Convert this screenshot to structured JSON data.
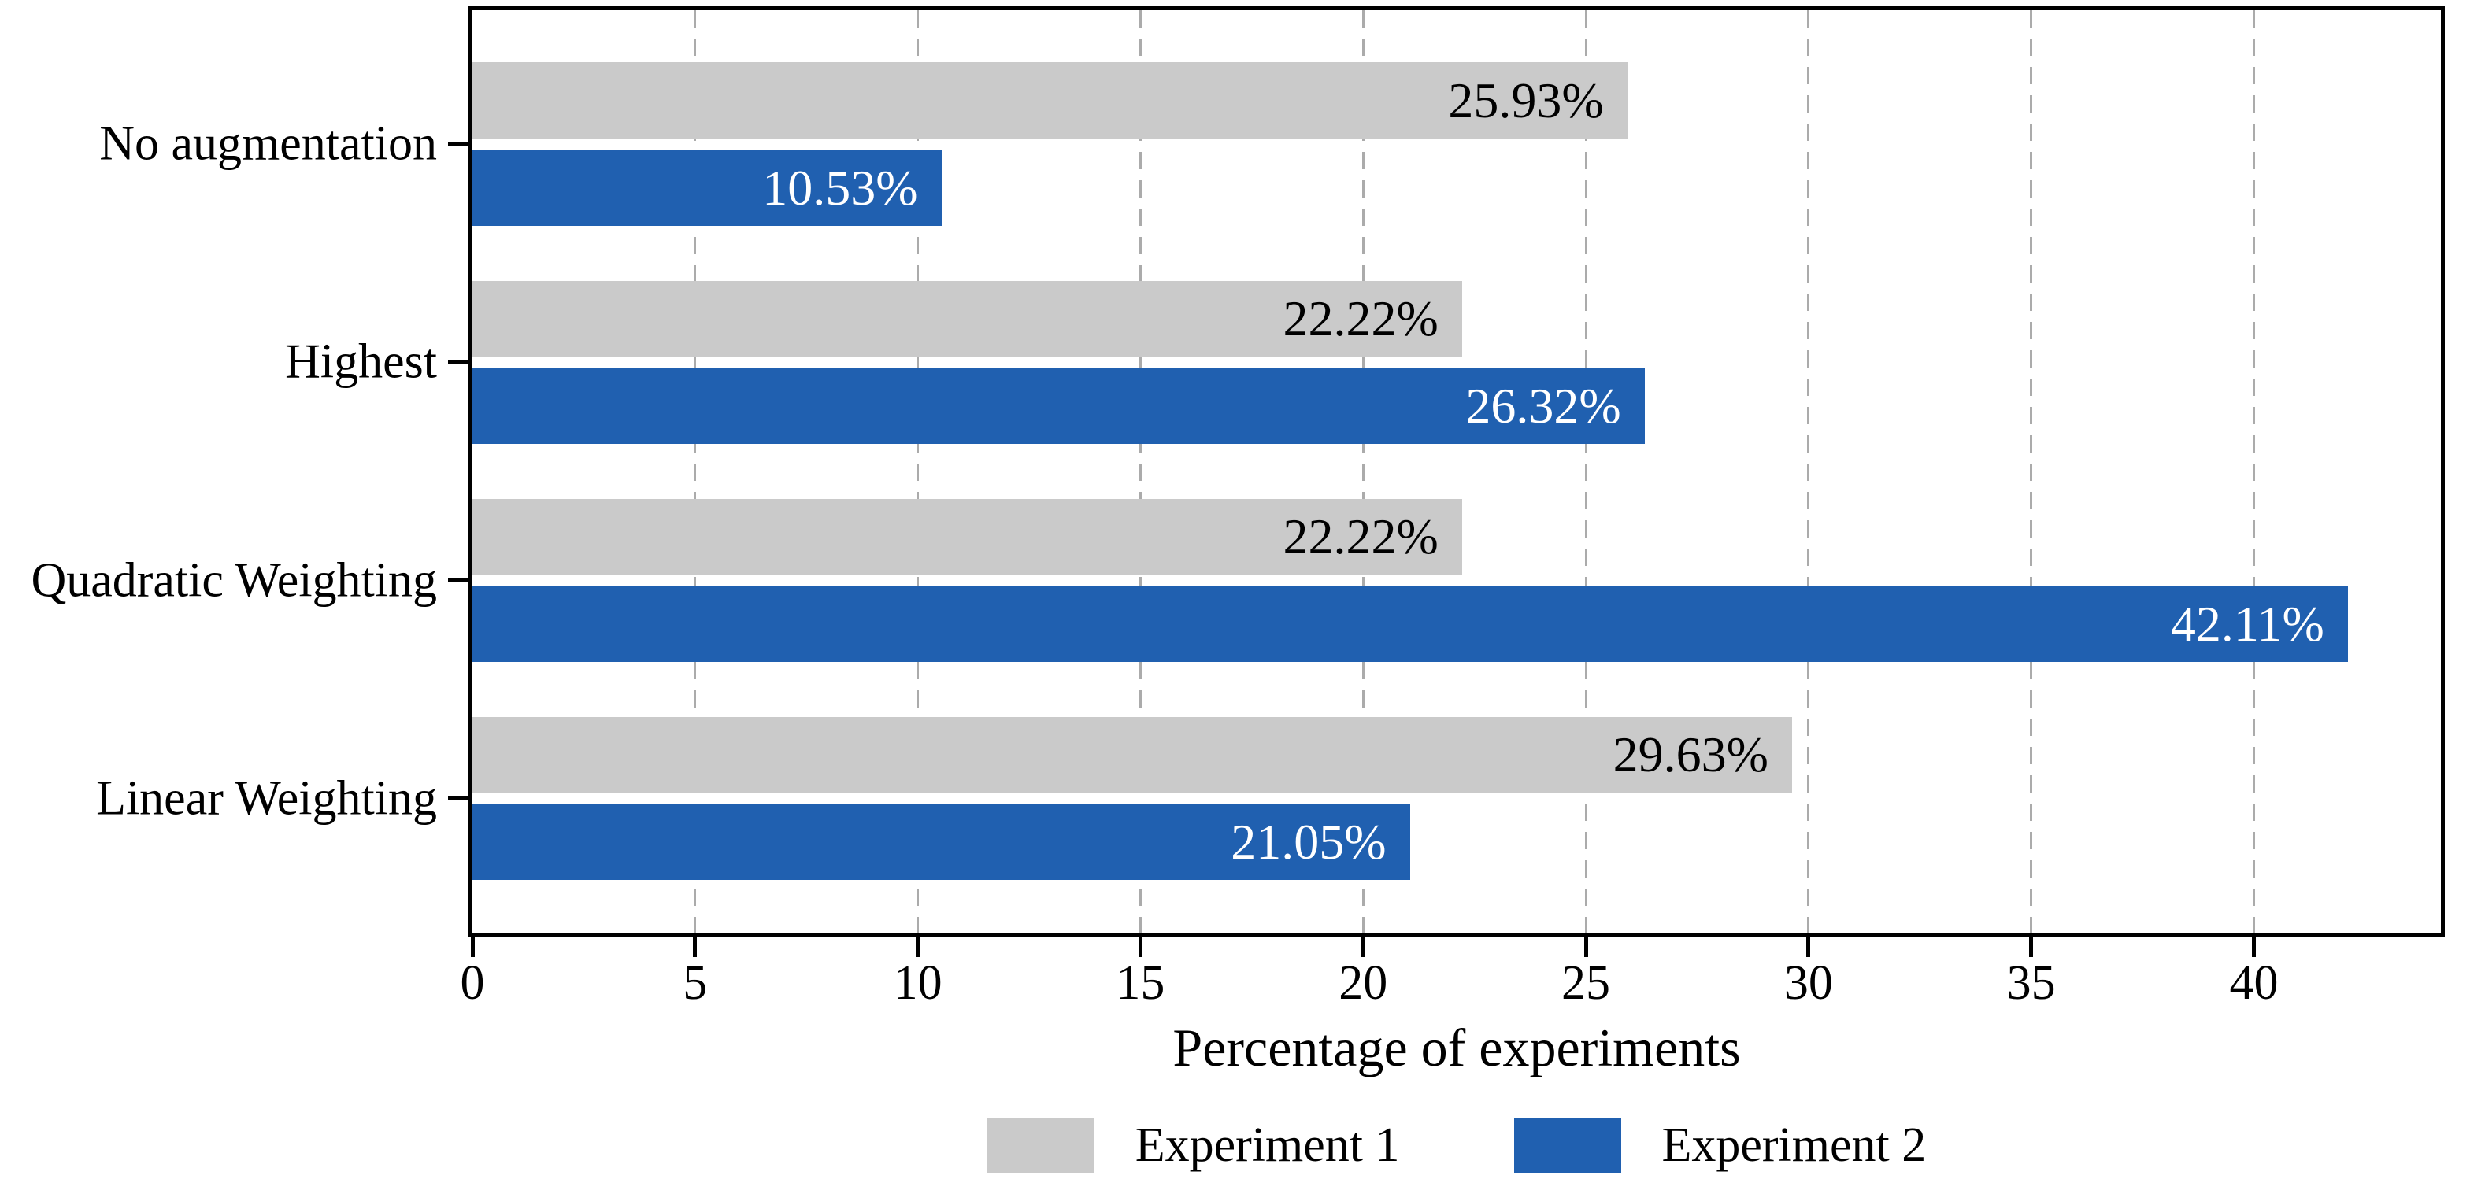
{
  "chart_data": {
    "type": "bar",
    "orientation": "horizontal",
    "categories": [
      "No augmentation",
      "Highest",
      "Quadratic Weighting",
      "Linear Weighting"
    ],
    "series": [
      {
        "name": "Experiment 1",
        "color": "#cacaca",
        "label_color": "#000000",
        "values": [
          25.93,
          22.22,
          22.22,
          29.63
        ],
        "value_labels": [
          "25.93%",
          "22.22%",
          "22.22%",
          "29.63%"
        ]
      },
      {
        "name": "Experiment 2",
        "color": "#2060b0",
        "label_color": "#ffffff",
        "values": [
          10.53,
          26.32,
          42.11,
          21.05
        ],
        "value_labels": [
          "10.53%",
          "26.32%",
          "42.11%",
          "21.05%"
        ]
      }
    ],
    "xlabel": "Percentage of experiments",
    "xlim": [
      0,
      44.2
    ],
    "xticks": [
      0,
      5,
      10,
      15,
      20,
      25,
      30,
      35,
      40
    ],
    "xtick_labels": [
      "0",
      "5",
      "10",
      "15",
      "20",
      "25",
      "30",
      "35",
      "40"
    ],
    "grid": {
      "axis": "x",
      "style": "dashed",
      "color": "#ababab"
    },
    "legend_position": "bottom-center",
    "axis_color": "#000000"
  }
}
